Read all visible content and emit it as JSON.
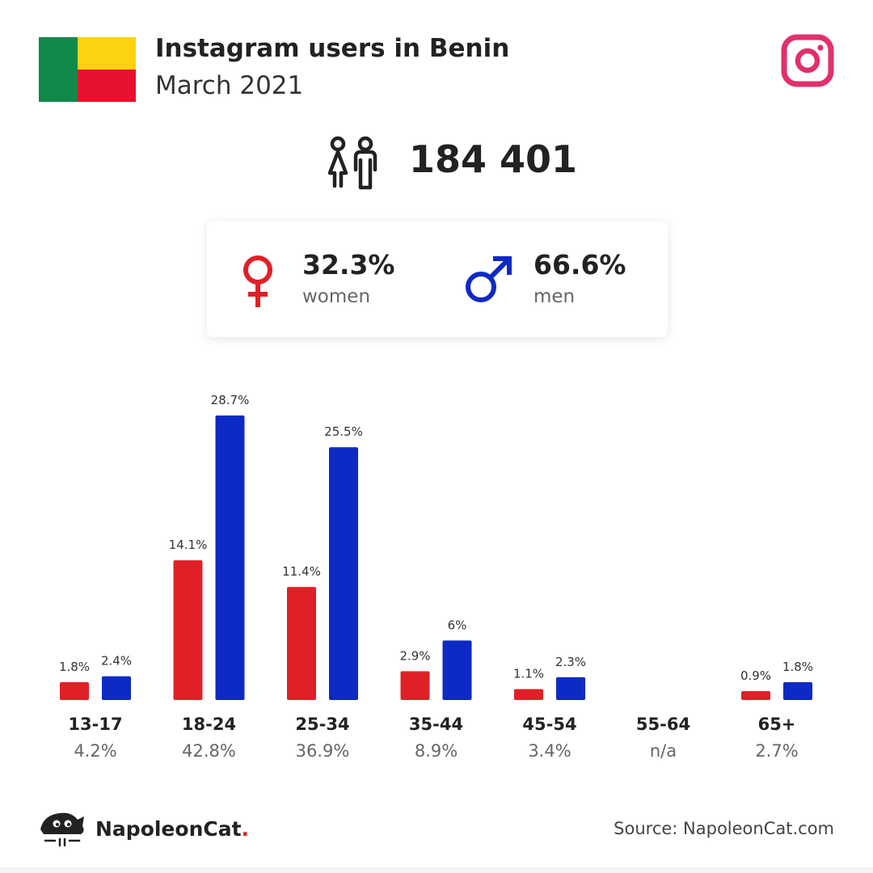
{
  "header": {
    "title": "Instagram users in Benin",
    "subtitle": "March 2021"
  },
  "flag": {
    "green": "#11894a",
    "yellow": "#fdd20e",
    "red": "#e8112d"
  },
  "icons": {
    "instagram": "instagram-icon",
    "users": "users-icon",
    "female": "female-symbol-icon",
    "male": "male-symbol-icon"
  },
  "total_users": "184 401",
  "gender": {
    "women": {
      "value": "32.3%",
      "label": "women"
    },
    "men": {
      "value": "66.6%",
      "label": "men"
    }
  },
  "colors": {
    "women": "#e02027",
    "men": "#0e2ac4",
    "instagram": "#e1306c"
  },
  "chart_data": {
    "type": "bar",
    "categories": [
      "13-17",
      "18-24",
      "25-34",
      "35-44",
      "45-54",
      "55-64",
      "65+"
    ],
    "category_totals": [
      "4.2%",
      "42.8%",
      "36.9%",
      "8.9%",
      "3.4%",
      "n/a",
      "2.7%"
    ],
    "series": [
      {
        "values": [
          1.8,
          14.1,
          11.4,
          2.9,
          1.1,
          null,
          0.9
        ],
        "labels": [
          "1.8%",
          "14.1%",
          "11.4%",
          "2.9%",
          "1.1%",
          "",
          "0.9%"
        ],
        "color": "#e02027"
      },
      {
        "values": [
          2.4,
          28.7,
          25.5,
          6,
          2.3,
          null,
          1.8
        ],
        "labels": [
          "2.4%",
          "28.7%",
          "25.5%",
          "6%",
          "2.3%",
          "",
          "1.8%"
        ],
        "color": "#0e2ac4"
      }
    ],
    "ylim": [
      0,
      28.7
    ],
    "grid": false
  },
  "footer": {
    "brand": "NapoleonCat",
    "brand_dot": ".",
    "source": "Source: NapoleonCat.com"
  }
}
